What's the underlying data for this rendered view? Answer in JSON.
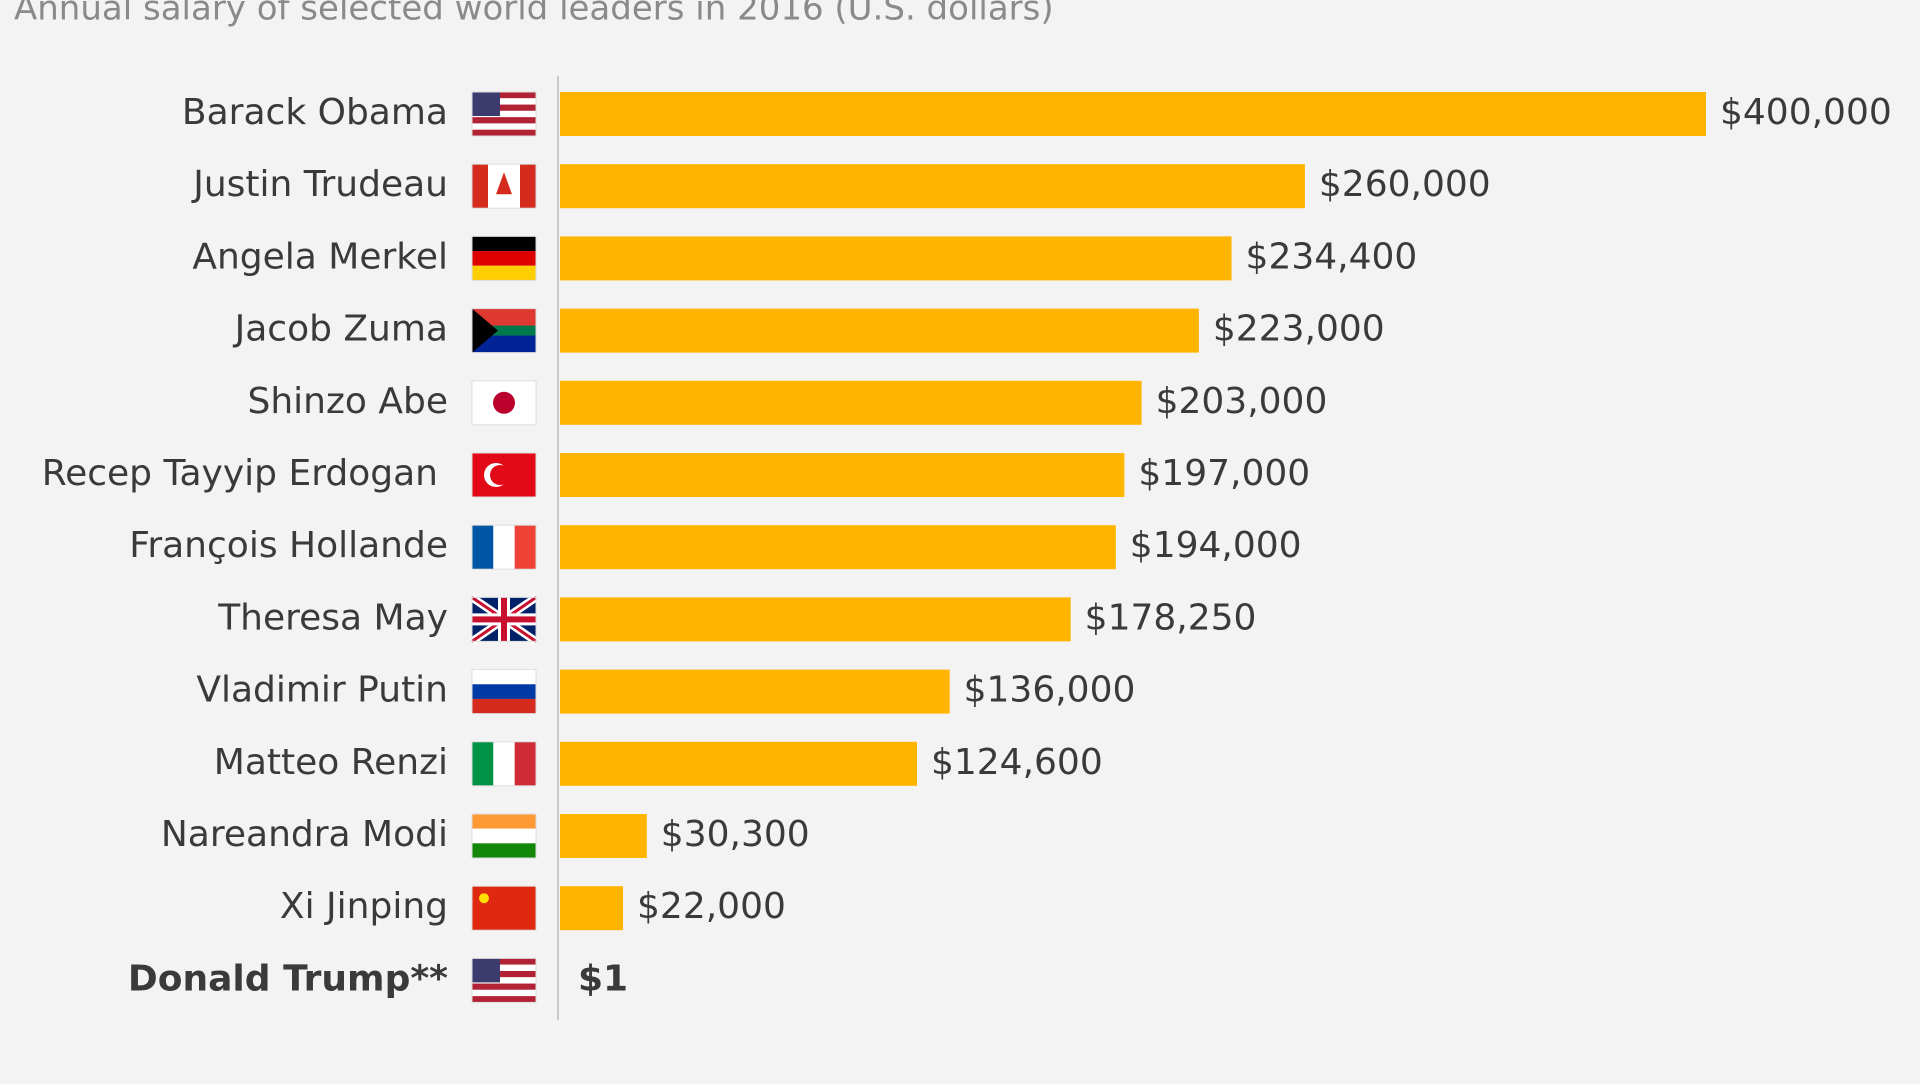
{
  "chart_data": {
    "type": "bar",
    "orientation": "horizontal",
    "title": "Annual salary of selected world leaders in 2016 (U.S. dollars)",
    "categories": [
      "Barack Obama",
      "Justin Trudeau",
      "Angela Merkel",
      "Jacob Zuma",
      "Shinzo Abe",
      "Recep Tayyip Erdogan",
      "François Hollande",
      "Theresa May",
      "Vladimir Putin",
      "Matteo Renzi",
      "Nareandra Modi",
      "Xi Jinping",
      "Donald Trump**"
    ],
    "values": [
      400000,
      260000,
      234400,
      223000,
      203000,
      197000,
      194000,
      178250,
      136000,
      124600,
      30300,
      22000,
      1
    ],
    "value_labels": [
      "$400,000",
      "$260,000",
      "$234,400",
      "$223,000",
      "$203,000",
      "$197,000",
      "$194,000",
      "$178,250",
      "$136,000",
      "$124,600",
      "$30,300",
      "$22,000",
      "$1"
    ],
    "color": "#ffb400",
    "xlim": [
      0,
      400000
    ]
  }
}
